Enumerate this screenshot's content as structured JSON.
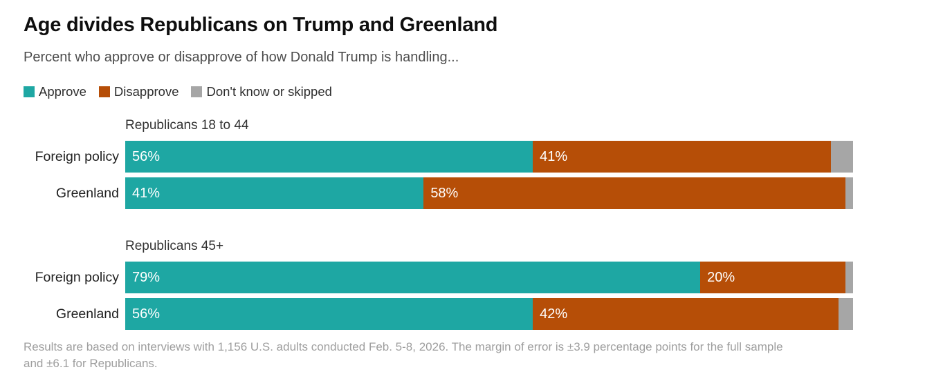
{
  "title": "Age divides Republicans on Trump and Greenland",
  "subtitle": "Percent who approve or disapprove of how Donald Trump is handling...",
  "legend": [
    {
      "label": "Approve",
      "color": "#1ea7a3"
    },
    {
      "label": "Disapprove",
      "color": "#b64e07"
    },
    {
      "label": "Don't know or skipped",
      "color": "#a6a6a6"
    }
  ],
  "chart_data": {
    "type": "bar",
    "orientation": "horizontal",
    "stacked": true,
    "unit": "percent",
    "xlim": [
      0,
      100
    ],
    "series_names": [
      "Approve",
      "Disapprove",
      "Don't know or skipped"
    ],
    "groups": [
      {
        "header": "Republicans 18 to 44",
        "rows": [
          {
            "category": "Foreign policy",
            "approve": 56,
            "approve_label": "56%",
            "disapprove": 41,
            "disapprove_label": "41%",
            "dont_know": 3
          },
          {
            "category": "Greenland",
            "approve": 41,
            "approve_label": "41%",
            "disapprove": 58,
            "disapprove_label": "58%",
            "dont_know": 1
          }
        ]
      },
      {
        "header": "Republicans 45+",
        "rows": [
          {
            "category": "Foreign policy",
            "approve": 79,
            "approve_label": "79%",
            "disapprove": 20,
            "disapprove_label": "20%",
            "dont_know": 1
          },
          {
            "category": "Greenland",
            "approve": 56,
            "approve_label": "56%",
            "disapprove": 42,
            "disapprove_label": "42%",
            "dont_know": 2
          }
        ]
      }
    ]
  },
  "footer": "Results are based on interviews with 1,156 U.S. adults conducted Feb. 5-8, 2026. The margin of error is ±3.9 percentage points for the full sample and ±6.1 for Republicans."
}
